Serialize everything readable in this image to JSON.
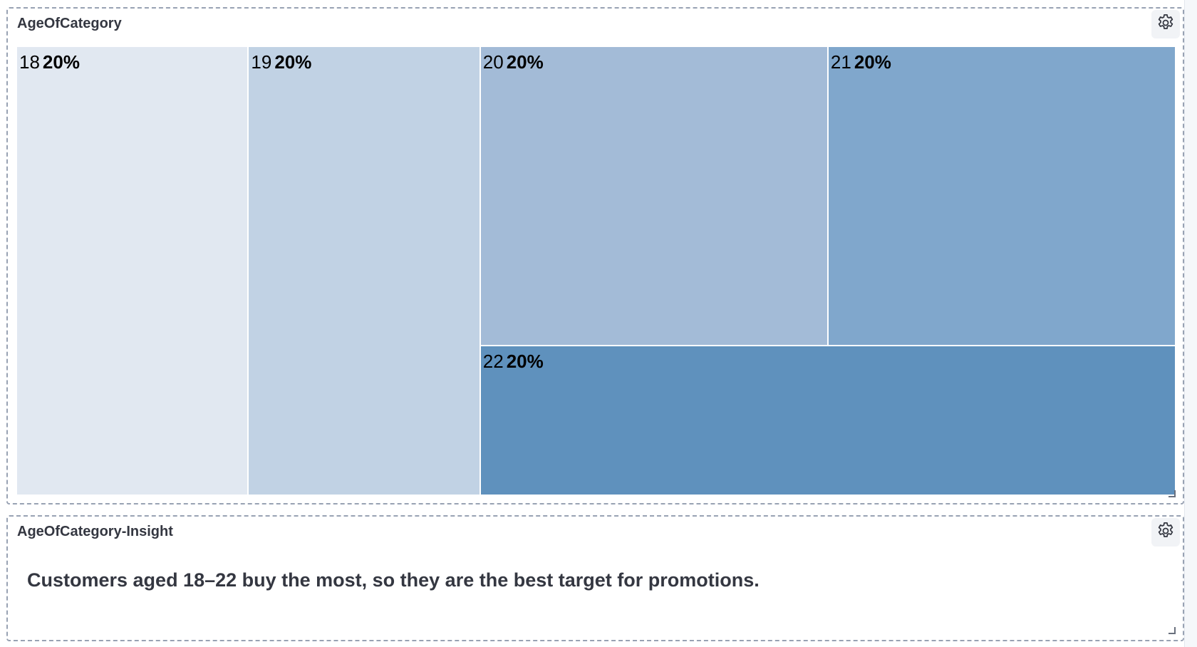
{
  "chart_panel": {
    "title": "AgeOfCategory",
    "settings_icon": "gear-icon"
  },
  "insight_panel": {
    "title": "AgeOfCategory-Insight",
    "settings_icon": "gear-icon",
    "text": "Customers aged 18–22 buy the most, so they are the best target for promotions."
  },
  "chart_data": {
    "type": "treemap",
    "title": "AgeOfCategory",
    "categories": [
      "18",
      "19",
      "20",
      "21",
      "22"
    ],
    "values": [
      20,
      20,
      20,
      20,
      20
    ],
    "labels": [
      "20%",
      "20%",
      "20%",
      "20%",
      "20%"
    ],
    "colors": [
      "#e1e8f1",
      "#c1d2e4",
      "#a3bbd7",
      "#80a7cc",
      "#5f91bd"
    ]
  }
}
